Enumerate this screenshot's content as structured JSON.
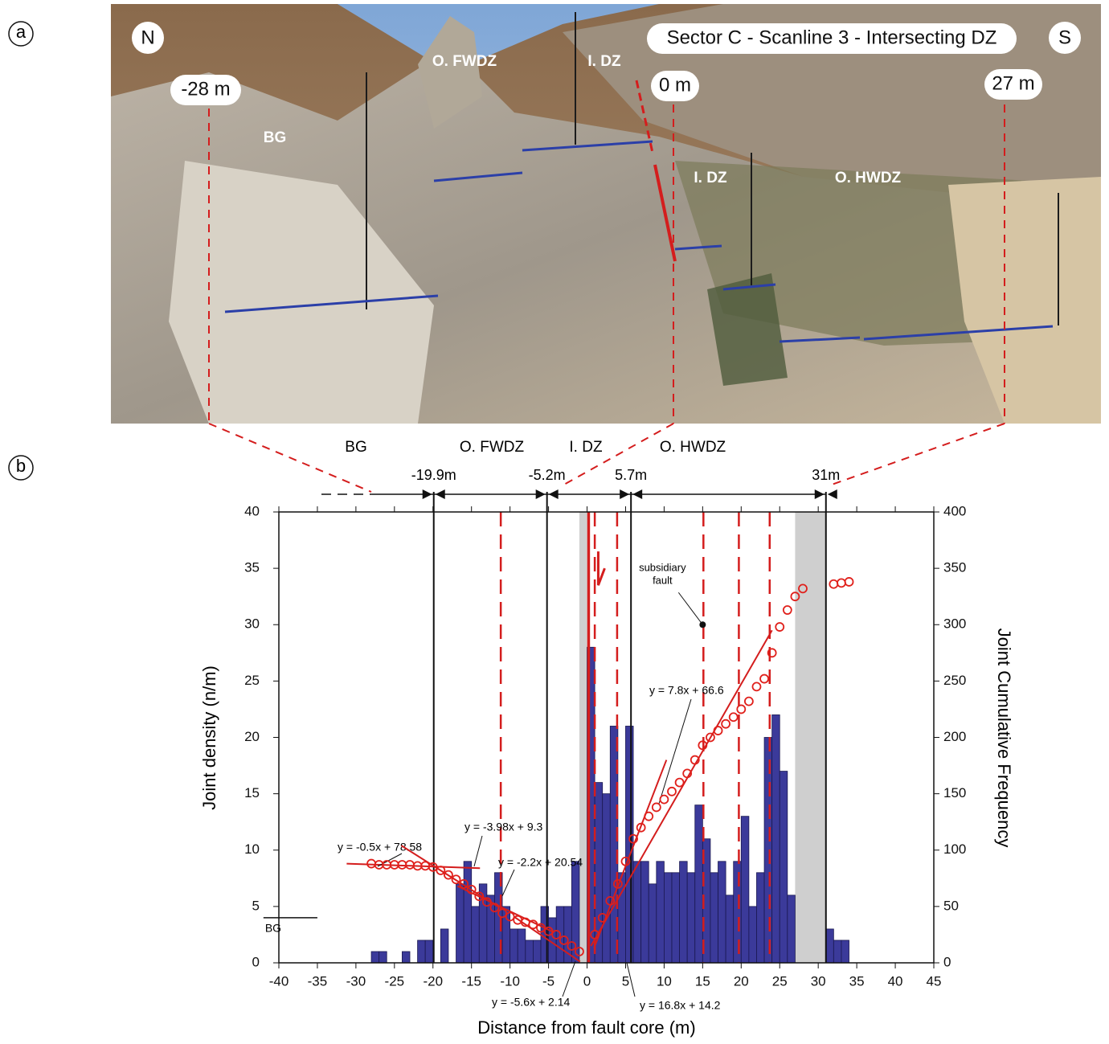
{
  "panels": {
    "a": "a",
    "b": "b"
  },
  "photo": {
    "north": "N",
    "south": "S",
    "title": "Sector C - Scanline 3 - Intersecting DZ",
    "markers": [
      "-28 m",
      "0 m",
      "27 m"
    ],
    "zone_labels": [
      "BG",
      "O. FWDZ",
      "I. DZ",
      "I. DZ",
      "O. HWDZ"
    ]
  },
  "chart_data": {
    "type": "histogram",
    "x_label": "Distance from fault core (m)",
    "y_label": "Joint density (n/m)",
    "y2_label": "Joint Cumulative Frequency",
    "xlim": [
      -40,
      45
    ],
    "xticks": [
      -40,
      -35,
      -30,
      -25,
      -20,
      -15,
      -10,
      -5,
      0,
      5,
      10,
      15,
      20,
      25,
      30,
      35,
      40,
      45
    ],
    "ylim": [
      0,
      40
    ],
    "yticks": [
      0,
      5,
      10,
      15,
      20,
      25,
      30,
      35,
      40
    ],
    "y2lim": [
      0,
      400
    ],
    "y2ticks": [
      0,
      50,
      100,
      150,
      200,
      250,
      300,
      350,
      400
    ],
    "bar_color": "#3b3a9a",
    "bins": [
      -28,
      -27,
      -26,
      -25,
      -24,
      -23,
      -22,
      -21,
      -20,
      -19,
      -18,
      -17,
      -16,
      -15,
      -14,
      -13,
      -12,
      -11,
      -10,
      -9,
      -8,
      -7,
      -6,
      -5,
      -4,
      -3,
      -2,
      -1,
      0,
      1,
      2,
      3,
      4,
      5,
      6,
      7,
      8,
      9,
      10,
      11,
      12,
      13,
      14,
      15,
      16,
      17,
      18,
      19,
      20,
      21,
      22,
      23,
      24,
      25,
      26,
      27,
      28,
      29,
      30,
      31,
      32,
      33,
      34
    ],
    "counts": [
      1,
      1,
      0,
      0,
      1,
      0,
      2,
      2,
      0,
      3,
      0,
      7,
      9,
      5,
      7,
      6,
      8,
      5,
      3,
      3,
      2,
      2,
      5,
      4,
      5,
      5,
      9,
      0,
      28,
      16,
      15,
      21,
      8,
      21,
      9,
      9,
      7,
      9,
      8,
      8,
      9,
      8,
      14,
      11,
      8,
      9,
      6,
      9,
      13,
      5,
      8,
      20,
      22,
      17,
      6,
      0,
      0,
      0,
      0,
      3,
      2,
      2
    ],
    "cumulative": {
      "axis": "y2",
      "color": "#e0201b",
      "x": [
        -28,
        -27,
        -26,
        -25,
        -24,
        -23,
        -22,
        -21,
        -20,
        -19,
        -18,
        -17,
        -16,
        -15,
        -14,
        -13,
        -12,
        -11,
        -10,
        -9,
        -8,
        -7,
        -6,
        -5,
        -4,
        -3,
        -2,
        -1,
        1,
        2,
        3,
        4,
        5,
        6,
        7,
        8,
        9,
        10,
        11,
        12,
        13,
        14,
        15,
        16,
        17,
        18,
        19,
        20,
        21,
        22,
        23,
        24,
        25,
        26,
        27,
        28,
        32,
        33,
        34
      ],
      "values": [
        88,
        87,
        87,
        87,
        87,
        87,
        86,
        86,
        85,
        82,
        78,
        74,
        70,
        65,
        59,
        54,
        49,
        44,
        41,
        38,
        36,
        34,
        31,
        28,
        25,
        20,
        15,
        10,
        25,
        40,
        55,
        70,
        90,
        110,
        120,
        130,
        138,
        145,
        152,
        160,
        168,
        180,
        193,
        200,
        206,
        212,
        218,
        225,
        232,
        245,
        252,
        275,
        298,
        313,
        325,
        332,
        336,
        337,
        338
      ]
    },
    "fits": [
      {
        "label": "y = -0.5x + 78.58",
        "x": [
          -31.2,
          -13.9
        ],
        "y": [
          8.8,
          8.4
        ]
      },
      {
        "label": "y = -3.98x + 9.3",
        "x": [
          -24.1,
          -11.6
        ],
        "y": [
          10.4,
          5.0
        ]
      },
      {
        "label": "y = -2.2x + 20.54",
        "x": [
          -16.8,
          -4.3
        ],
        "y": [
          6.8,
          2.7
        ]
      },
      {
        "label": "y = -5.6x + 2.14",
        "x": [
          -9.5,
          -0.9
        ],
        "y": [
          4.1,
          0.1
        ]
      },
      {
        "label": "y = 7.8x + 66.6",
        "x": [
          0.5,
          24
        ],
        "y": [
          1.5,
          29.5
        ]
      },
      {
        "label": "y = 16.8x + 14.2",
        "x": [
          0.9,
          10.3
        ],
        "y": [
          1.3,
          18.0
        ]
      }
    ],
    "boundaries": [
      {
        "value": -19.9,
        "label": "-19.9m"
      },
      {
        "value": -5.2,
        "label": "-5.2m"
      },
      {
        "value": 5.7,
        "label": "5.7m"
      },
      {
        "value": 31,
        "label": "31m"
      }
    ],
    "zones": [
      "BG",
      "O. FWDZ",
      "I. DZ",
      "O. HWDZ"
    ],
    "dashed_lines": [
      -11.2,
      1,
      3.9,
      15.1,
      19.7,
      23.7
    ],
    "fault_core": 0.2,
    "gray_bands": [
      [
        -1,
        0
      ],
      [
        27,
        31
      ]
    ],
    "subsidiary_fault": {
      "label": [
        "subsidiary",
        "fault"
      ],
      "x": 15,
      "y": 30
    },
    "background": {
      "label": "BG",
      "y": 4,
      "x": [
        -42,
        -35
      ]
    }
  }
}
